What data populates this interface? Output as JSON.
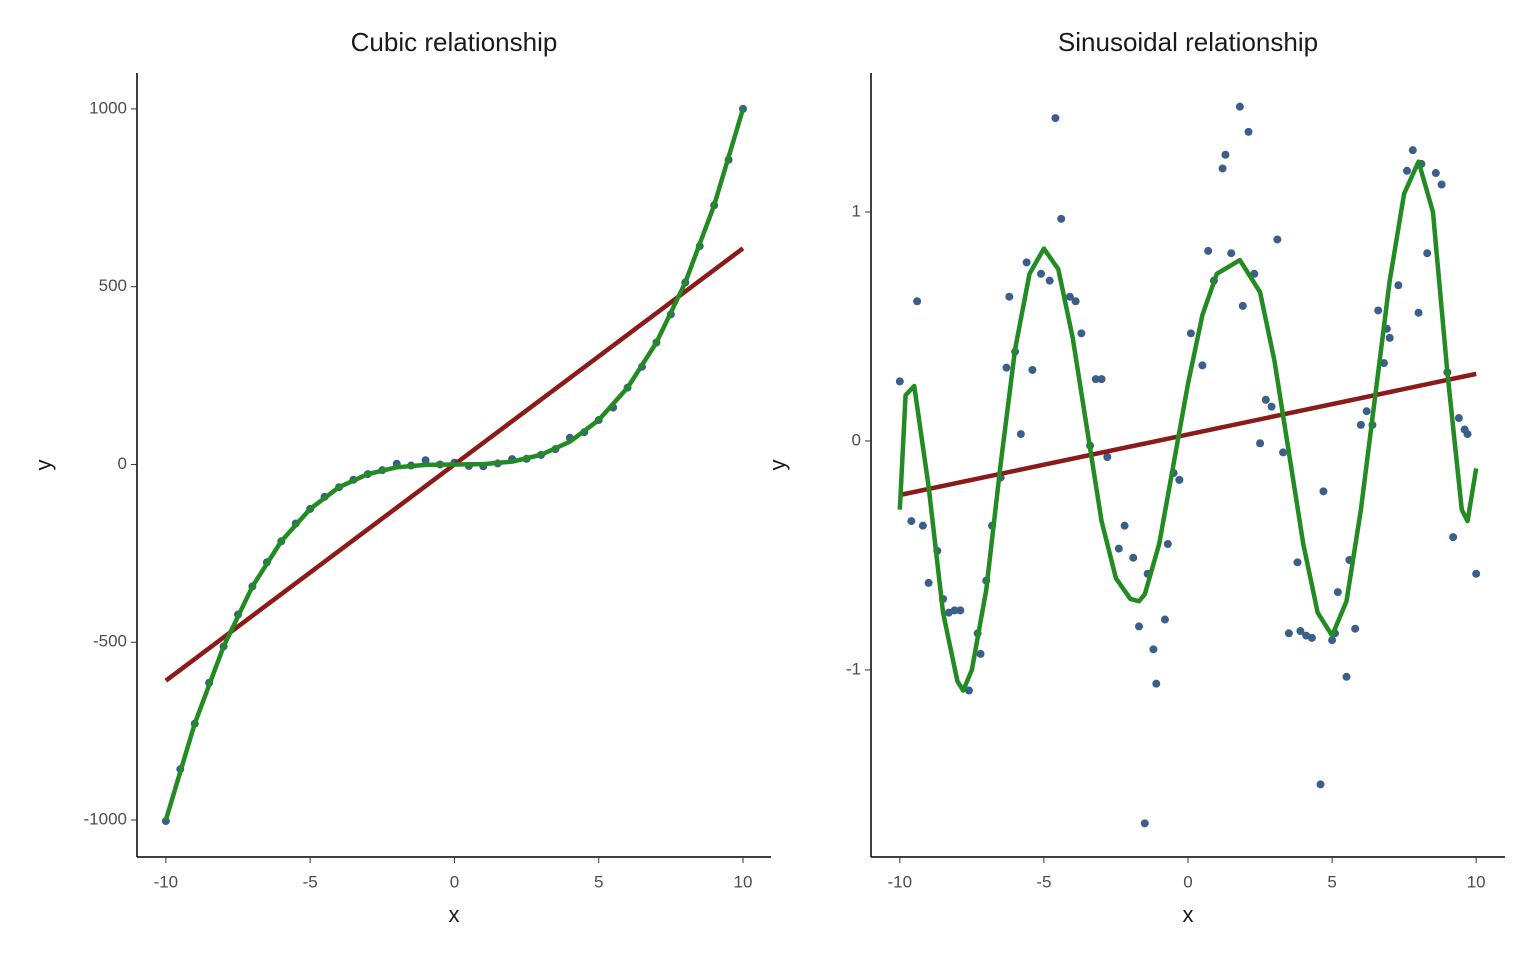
{
  "chart_data": [
    {
      "type": "scatter",
      "title": "Cubic relationship",
      "x_label": "x",
      "y_label": "y",
      "xlim": [
        -11,
        10.97
      ],
      "ylim": [
        -1104,
        1101
      ],
      "xticks": [
        -10,
        -5,
        0,
        5,
        10
      ],
      "yticks": [
        -1000,
        -500,
        0,
        500,
        1000
      ],
      "grid": false,
      "series": [
        {
          "marker": "point",
          "color": "#3a5f8a",
          "x": [
            -10,
            -9.5,
            -9,
            -8.5,
            -8,
            -7.5,
            -7,
            -6.5,
            -6,
            -5.5,
            -5,
            -4.5,
            -4,
            -3.5,
            -3,
            -2.5,
            -2,
            -1.5,
            -1,
            -0.5,
            0,
            0.5,
            1,
            1.5,
            2,
            2.5,
            3,
            3.5,
            4,
            4.5,
            5,
            5.5,
            6,
            6.5,
            7,
            7.5,
            8,
            8.5,
            9,
            9.5,
            10
          ],
          "values": [
            -1003,
            -857,
            -729,
            -614,
            -512,
            -422,
            -343,
            -275,
            -216,
            -166,
            -125,
            -91,
            -64,
            -43,
            -27,
            -16,
            2,
            -3,
            12,
            0,
            5,
            -4,
            -5,
            3,
            15,
            16,
            27,
            43,
            75,
            91,
            125,
            160,
            216,
            275,
            343,
            422,
            512,
            614,
            729,
            857,
            1000
          ]
        },
        {
          "marker": "line",
          "color": "#8b1a1a",
          "x": [
            -10,
            10
          ],
          "values": [
            -608,
            608
          ]
        },
        {
          "marker": "line",
          "color": "#228b22",
          "x": [
            -10,
            -9,
            -8,
            -7,
            -6,
            -5,
            -4,
            -3,
            -2,
            -1,
            0,
            1,
            2,
            3,
            4,
            5,
            6,
            7,
            8,
            9,
            10
          ],
          "values": [
            -1000,
            -729,
            -512,
            -343,
            -216,
            -125,
            -64,
            -27,
            -8,
            -1,
            0,
            1,
            8,
            27,
            64,
            125,
            216,
            343,
            512,
            729,
            1000
          ]
        }
      ]
    },
    {
      "type": "scatter",
      "title": "Sinusoidal relationship",
      "x_label": "x",
      "y_label": "y",
      "xlim": [
        -11,
        11
      ],
      "ylim": [
        -1.817,
        1.607
      ],
      "xticks": [
        -10,
        -5,
        0,
        5,
        10
      ],
      "yticks": [
        -1,
        0,
        1
      ],
      "grid": false,
      "series": [
        {
          "marker": "point",
          "color": "#3a5f8a",
          "x": [
            -10,
            -9.6,
            -9.4,
            -9.2,
            -9,
            -8.7,
            -8.5,
            -8.3,
            -8.1,
            -7.9,
            -7.6,
            -7.3,
            -7.2,
            -7,
            -6.8,
            -6.5,
            -6.3,
            -6.2,
            -6,
            -5.8,
            -5.6,
            -5.4,
            -5.1,
            -4.8,
            -4.6,
            -4.4,
            -4.1,
            -3.9,
            -3.7,
            -3.4,
            -3.2,
            -3,
            -2.8,
            -2.4,
            -2.2,
            -1.9,
            -1.7,
            -1.5,
            -1.4,
            -1.2,
            -1.1,
            -0.8,
            -0.7,
            -0.5,
            -0.3,
            0.1,
            0.5,
            0.7,
            0.9,
            1.2,
            1.3,
            1.5,
            1.8,
            1.9,
            2.1,
            2.3,
            2.5,
            2.7,
            2.9,
            3.1,
            3.3,
            3.5,
            3.8,
            3.9,
            4.1,
            4.3,
            4.6,
            4.7,
            5,
            5.1,
            5.2,
            5.5,
            5.6,
            5.8,
            6,
            6.2,
            6.4,
            6.6,
            6.8,
            6.9,
            7,
            7.3,
            7.6,
            7.8,
            8,
            8.1,
            8.3,
            8.6,
            8.8,
            9,
            9.2,
            9.4,
            9.6,
            9.7,
            10
          ],
          "values": [
            0.26,
            -0.35,
            0.61,
            -0.37,
            -0.62,
            -0.48,
            -0.69,
            -0.75,
            -0.74,
            -0.74,
            -1.09,
            -0.84,
            -0.93,
            -0.61,
            -0.37,
            -0.16,
            0.32,
            0.63,
            0.39,
            0.03,
            0.78,
            0.31,
            0.73,
            0.7,
            1.41,
            0.97,
            0.63,
            0.61,
            0.47,
            -0.02,
            0.27,
            0.27,
            -0.07,
            -0.47,
            -0.37,
            -0.51,
            -0.81,
            -1.67,
            -0.58,
            -0.91,
            -1.06,
            -0.78,
            -0.45,
            -0.14,
            -0.17,
            0.47,
            0.33,
            0.83,
            0.7,
            1.19,
            1.25,
            0.82,
            1.46,
            0.59,
            1.35,
            0.73,
            -0.01,
            0.18,
            0.15,
            0.88,
            -0.05,
            -0.84,
            -0.53,
            -0.83,
            -0.85,
            -0.86,
            -1.5,
            -0.22,
            -0.87,
            -0.84,
            -0.66,
            -1.03,
            -0.52,
            -0.82,
            0.07,
            0.13,
            0.07,
            0.57,
            0.34,
            0.49,
            0.45,
            0.68,
            1.18,
            1.27,
            0.56,
            1.21,
            0.82,
            1.17,
            1.12,
            0.3,
            -0.42,
            0.1,
            0.05,
            0.03,
            -0.58
          ]
        },
        {
          "marker": "line",
          "color": "#8b1a1a",
          "x": [
            -10,
            10
          ],
          "values": [
            -0.236,
            0.293
          ]
        },
        {
          "marker": "line",
          "color": "#228b22",
          "x": [
            -10,
            -9.8,
            -9.5,
            -9,
            -8.5,
            -8,
            -7.8,
            -7.5,
            -7,
            -6.5,
            -6,
            -5.5,
            -5,
            -4.5,
            -4,
            -3.5,
            -3,
            -2.5,
            -2,
            -1.7,
            -1.5,
            -1,
            -0.5,
            0,
            0.5,
            1,
            1.8,
            2.5,
            3,
            3.5,
            4,
            4.5,
            5,
            5.5,
            6,
            6.5,
            7,
            7.5,
            8,
            8.5,
            9,
            9.5,
            9.7,
            10
          ],
          "values": [
            -0.3,
            0.2,
            0.24,
            -0.2,
            -0.75,
            -1.05,
            -1.09,
            -1.0,
            -0.65,
            -0.1,
            0.4,
            0.73,
            0.84,
            0.75,
            0.45,
            0.05,
            -0.35,
            -0.6,
            -0.69,
            -0.7,
            -0.67,
            -0.45,
            -0.1,
            0.25,
            0.55,
            0.73,
            0.79,
            0.65,
            0.35,
            -0.05,
            -0.45,
            -0.75,
            -0.85,
            -0.7,
            -0.3,
            0.2,
            0.7,
            1.08,
            1.22,
            1.0,
            0.3,
            -0.3,
            -0.35,
            -0.12
          ]
        }
      ]
    }
  ]
}
